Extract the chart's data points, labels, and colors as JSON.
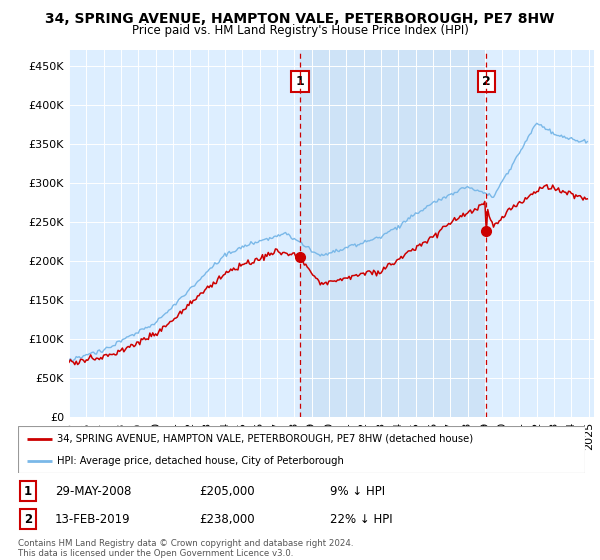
{
  "title": "34, SPRING AVENUE, HAMPTON VALE, PETERBOROUGH, PE7 8HW",
  "subtitle": "Price paid vs. HM Land Registry's House Price Index (HPI)",
  "hpi_color": "#7ab8e8",
  "price_color": "#cc0000",
  "sale1_t": 2008.333,
  "sale1_price": 205000,
  "sale2_t": 2019.083,
  "sale2_price": 238000,
  "legend_line1": "34, SPRING AVENUE, HAMPTON VALE, PETERBOROUGH, PE7 8HW (detached house)",
  "legend_line2": "HPI: Average price, detached house, City of Peterborough",
  "footer": "Contains HM Land Registry data © Crown copyright and database right 2024.\nThis data is licensed under the Open Government Licence v3.0.",
  "ylim": [
    0,
    470000
  ],
  "yticks": [
    0,
    50000,
    100000,
    150000,
    200000,
    250000,
    300000,
    350000,
    400000,
    450000
  ],
  "bg_color": "#ddeeff",
  "shade_color": "#c8dff5"
}
